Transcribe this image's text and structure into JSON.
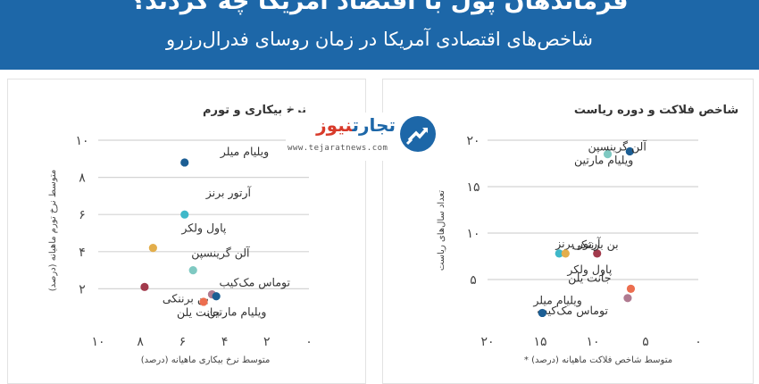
{
  "header": {
    "title": "فرماندهان پول با اقتصاد آمریکا چه کردند؟",
    "subtitle": "شاخص‌های اقتصادی آمریکا در زمان روسای فدرال‌رزرو"
  },
  "logo": {
    "brand_main": "تجارت",
    "brand_accent": "نیوز",
    "url": "www.tejaratnews.com"
  },
  "chart_data": [
    {
      "type": "scatter",
      "title": "شاخص فلاکت و دوره ریاست",
      "xlabel": "متوسط شاخص فلاکت ماهیانه (درصد) *",
      "ylabel": "تعداد سال‌های ریاست",
      "x_reversed": true,
      "xlim": [
        0,
        20
      ],
      "ylim": [
        0,
        20
      ],
      "xticks": [
        0,
        5,
        10,
        15,
        20
      ],
      "yticks": [
        5,
        10,
        15,
        20
      ],
      "xtick_labels": [
        "۰",
        "۵",
        "۱۰",
        "۱۵",
        "۲۰"
      ],
      "ytick_labels": [
        "۵",
        "۱۰",
        "۱۵",
        "۲۰"
      ],
      "grid": true,
      "points": [
        {
          "label": "ویلیام مارتین",
          "x": 6.5,
          "y": 18.8,
          "color": "#1c5e94"
        },
        {
          "label": "آلن گرینسپن",
          "x": 8.6,
          "y": 18.5,
          "color": "#7fc9c2"
        },
        {
          "label": "بن برننکی",
          "x": 9.6,
          "y": 7.8,
          "color": "#a23a4c"
        },
        {
          "label": "آرتور برنز",
          "x": 13.2,
          "y": 7.8,
          "color": "#3fb8c9"
        },
        {
          "label": "پاول ولکر",
          "x": 12.6,
          "y": 7.8,
          "color": "#e3ae4b"
        },
        {
          "label": "جانت یلن",
          "x": 6.4,
          "y": 4.0,
          "color": "#ec6e4f"
        },
        {
          "label": "توماس مک‌کیب",
          "x": 6.7,
          "y": 3.0,
          "color": "#b07a90"
        },
        {
          "label": "ویلیام میلر",
          "x": 14.8,
          "y": 1.4,
          "color": "#1c5e94"
        }
      ]
    },
    {
      "type": "scatter",
      "title": "نرخ بیکاری و تورم",
      "xlabel": "متوسط نرخ بیکاری ماهیانه (درصد)",
      "ylabel": "متوسط نرخ تورم ماهیانه (درصد)",
      "x_reversed": true,
      "xlim": [
        0,
        10
      ],
      "ylim": [
        0,
        10
      ],
      "xticks": [
        0,
        2,
        4,
        6,
        8,
        10
      ],
      "yticks": [
        2,
        4,
        6,
        8,
        10
      ],
      "xtick_labels": [
        "۰",
        "۲",
        "۴",
        "۶",
        "۸",
        "۱۰"
      ],
      "ytick_labels": [
        "۲",
        "۴",
        "۶",
        "۸",
        "۱۰"
      ],
      "grid": true,
      "points": [
        {
          "label": "ویلیام میلر",
          "x": 5.9,
          "y": 8.8,
          "color": "#1c5e94"
        },
        {
          "label": "آرتور برنز",
          "x": 5.9,
          "y": 6.0,
          "color": "#3fb8c9"
        },
        {
          "label": "پاول ولکر",
          "x": 7.4,
          "y": 4.2,
          "color": "#e3ae4b"
        },
        {
          "label": "آلن گرینسپن",
          "x": 5.5,
          "y": 3.0,
          "color": "#7fc9c2"
        },
        {
          "label": "بن برننکی",
          "x": 7.8,
          "y": 2.1,
          "color": "#a23a4c"
        },
        {
          "label": "توماس مک‌کیب",
          "x": 4.6,
          "y": 1.7,
          "color": "#b07a90"
        },
        {
          "label": "ویلیام مارتین",
          "x": 4.4,
          "y": 1.6,
          "color": "#1c5e94"
        },
        {
          "label": "جانت یلن",
          "x": 5.0,
          "y": 1.3,
          "color": "#ec6e4f"
        }
      ]
    }
  ]
}
